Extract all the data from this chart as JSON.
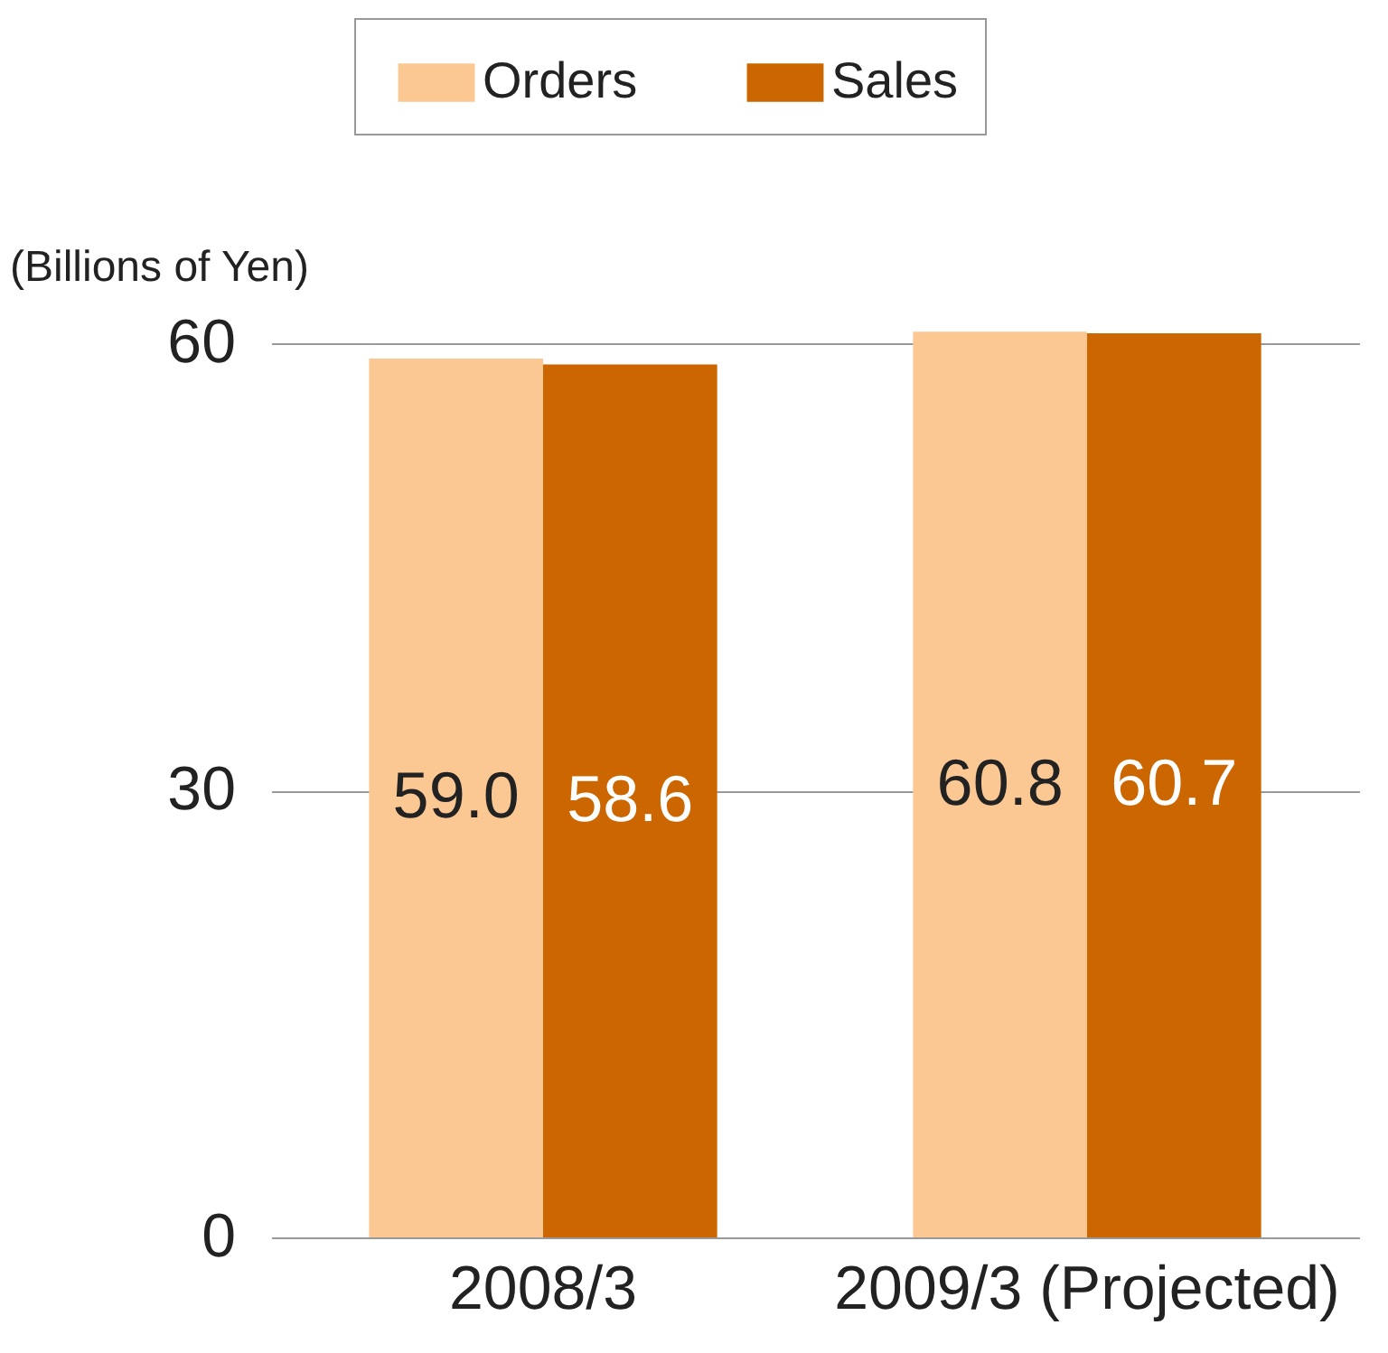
{
  "chart_data": {
    "type": "bar",
    "categories": [
      "2008/3",
      "2009/3 (Projected)"
    ],
    "series": [
      {
        "name": "Orders",
        "color": "#fbc894",
        "values": [
          59.0,
          60.8
        ],
        "value_labels": [
          "59.0",
          "60.8"
        ]
      },
      {
        "name": "Sales",
        "color": "#cc6600",
        "values": [
          58.6,
          60.7
        ],
        "value_labels": [
          "58.6",
          "60.7"
        ]
      }
    ],
    "ylabel": "(Billions of Yen)",
    "ylim": [
      0,
      61
    ],
    "yticks": [
      0,
      30,
      60
    ],
    "grid": "y",
    "legend": "top"
  }
}
